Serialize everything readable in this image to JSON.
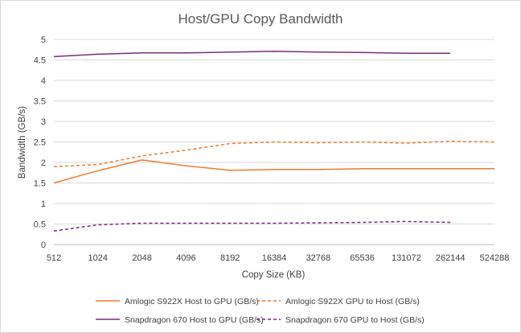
{
  "chart_data": {
    "type": "line",
    "title": "Host/GPU Copy Bandwidth",
    "xlabel": "Copy Size (KB)",
    "ylabel": "Bandwidth (GB/s)",
    "categories": [
      "512",
      "1024",
      "2048",
      "4096",
      "8192",
      "16384",
      "32768",
      "65536",
      "131072",
      "262144",
      "524288"
    ],
    "yticks": [
      "0",
      "0.5",
      "1",
      "1.5",
      "2",
      "2.5",
      "3",
      "3.5",
      "4",
      "4.5",
      "5"
    ],
    "ylim": [
      0,
      5
    ],
    "grid": "horizontal",
    "legend_position": "bottom",
    "series": [
      {
        "name": "Amlogic S922X Host to GPU (GB/s)",
        "color": "#ED7D31",
        "dash": "solid",
        "values": [
          1.5,
          1.8,
          2.06,
          1.92,
          1.81,
          1.83,
          1.83,
          1.85,
          1.85,
          1.85,
          1.85
        ]
      },
      {
        "name": "Amlogic S922X GPU to Host (GB/s)",
        "color": "#ED7D31",
        "dash": "dashed",
        "values": [
          1.9,
          1.95,
          2.16,
          2.3,
          2.46,
          2.5,
          2.48,
          2.5,
          2.47,
          2.52,
          2.5
        ]
      },
      {
        "name": "Snapdragon 670 Host to GPU (GB/s)",
        "color": "#7B2C7F",
        "dash": "solid",
        "values": [
          4.58,
          4.64,
          4.67,
          4.67,
          4.69,
          4.71,
          4.69,
          4.68,
          4.66,
          4.66,
          null
        ]
      },
      {
        "name": "Snapdragon 670 GPU to Host (GB/s)",
        "color": "#7B2C7F",
        "dash": "dashed",
        "values": [
          0.33,
          0.48,
          0.52,
          0.52,
          0.52,
          0.52,
          0.53,
          0.54,
          0.56,
          0.54,
          null
        ]
      }
    ]
  }
}
